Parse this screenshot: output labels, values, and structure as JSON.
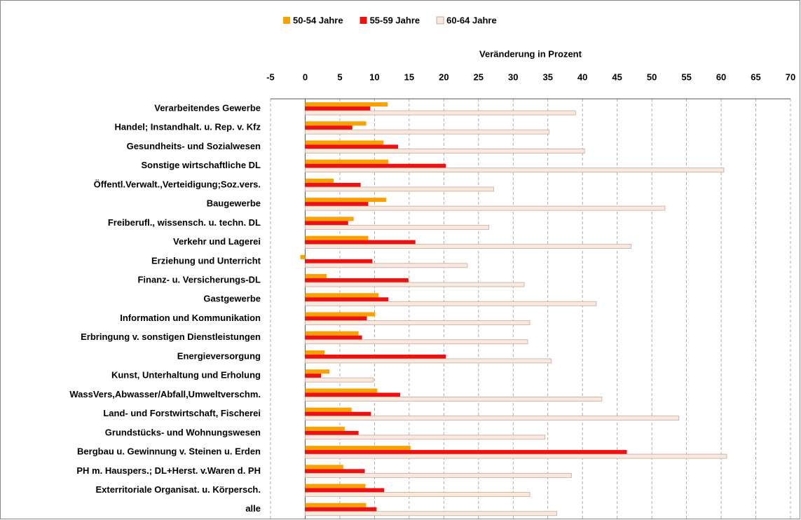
{
  "chart_data": {
    "type": "barh",
    "xlabel": "Veränderung in Prozent",
    "categories": [
      "Verarbeitendes Gewerbe",
      "Handel; Instandhalt. u. Rep. v. Kfz",
      "Gesundheits- und Sozialwesen",
      "Sonstige wirtschaftliche DL",
      "Öffentl.Verwalt.,Verteidigung;Soz.vers.",
      "Baugewerbe",
      "Freiberufl., wissensch. u. techn. DL",
      "Verkehr und Lagerei",
      "Erziehung und Unterricht",
      "Finanz- u. Versicherungs-DL",
      "Gastgewerbe",
      "Information und Kommunikation",
      "Erbringung v. sonstigen Dienstleistungen",
      "Energieversorgung",
      "Kunst, Unterhaltung und Erholung",
      "WassVers,Abwasser/Abfall,Umweltverschm.",
      "Land- und Forstwirtschaft, Fischerei",
      "Grundstücks- und Wohnungswesen",
      "Bergbau u. Gewinnung v. Steinen u. Erden",
      "PH m. Hauspers.; DL+Herst. v.Waren d. PH",
      "Exterritoriale Organisat. u. Körpersch.",
      "alle"
    ],
    "series": [
      {
        "name": "50-54 Jahre",
        "color": "#f9a100",
        "values": [
          11.9,
          8.8,
          11.3,
          12.0,
          4.1,
          11.7,
          7.0,
          9.1,
          -0.7,
          3.1,
          10.6,
          10.1,
          7.7,
          2.8,
          3.5,
          10.4,
          6.7,
          5.7,
          15.2,
          5.5,
          8.7,
          8.8
        ]
      },
      {
        "name": "55-59 Jahre",
        "color": "#ee1111",
        "values": [
          9.4,
          6.8,
          13.4,
          20.3,
          8.0,
          9.1,
          6.2,
          15.9,
          9.7,
          14.9,
          12.0,
          8.9,
          8.2,
          20.3,
          2.3,
          13.7,
          9.5,
          7.7,
          46.4,
          8.6,
          11.4,
          10.3
        ]
      },
      {
        "name": "60-64 Jahre",
        "color": "#f8e9df",
        "edgecolor": "#c9a899",
        "values": [
          39.0,
          35.2,
          40.3,
          60.4,
          27.2,
          51.9,
          26.5,
          47.0,
          23.4,
          31.6,
          42.0,
          32.4,
          32.1,
          35.5,
          9.8,
          42.8,
          53.9,
          34.6,
          60.8,
          38.4,
          32.4,
          36.3
        ]
      }
    ],
    "xlim": [
      -5,
      70
    ],
    "xticks": [
      -5,
      0,
      5,
      10,
      15,
      20,
      25,
      30,
      35,
      40,
      45,
      50,
      55,
      60,
      65,
      70
    ],
    "grid": true,
    "legend": "top"
  }
}
